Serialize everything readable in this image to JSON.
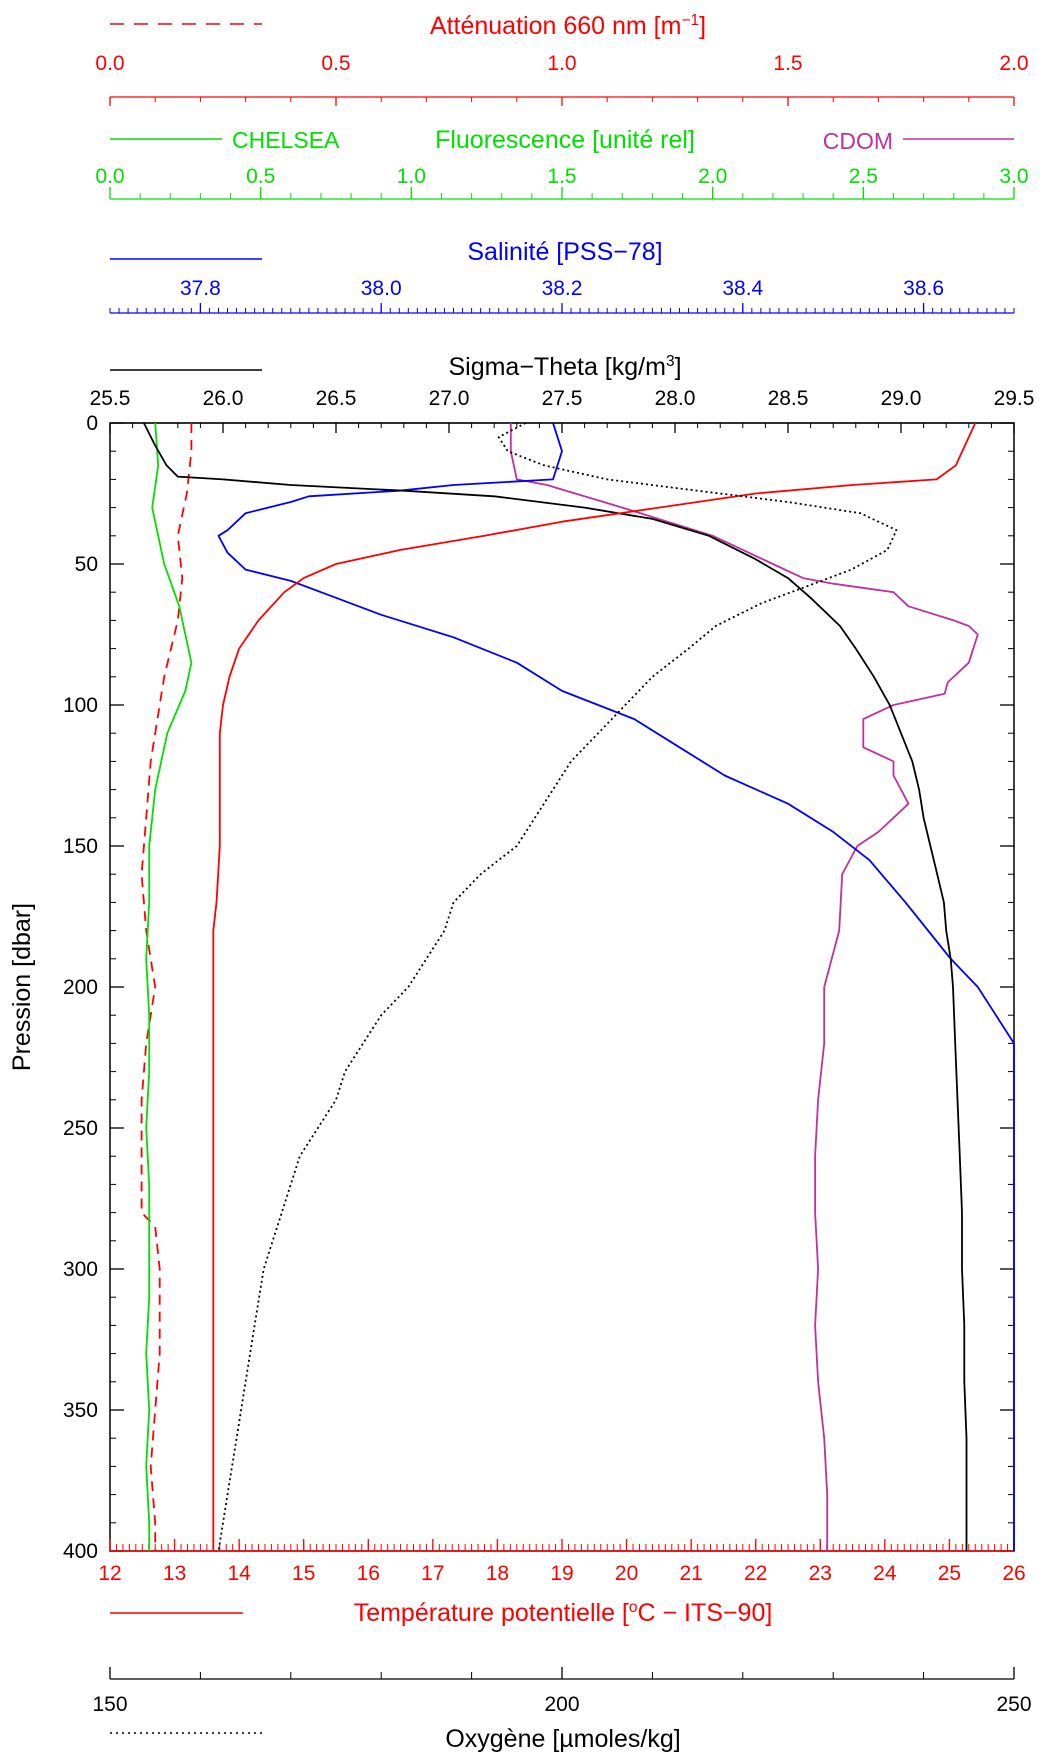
{
  "chart_data": {
    "type": "line",
    "y_axis": {
      "label": "Pression [dbar]",
      "range": [
        0,
        400
      ],
      "inverted": true,
      "ticks": [
        "0",
        "50",
        "100",
        "150",
        "200",
        "250",
        "300",
        "350",
        "400"
      ]
    },
    "axes": {
      "attenuation": {
        "label": "Atténuation 660 nm [m",
        "label_sup": "−1",
        "label_end": "]",
        "range": [
          0.0,
          2.0
        ],
        "ticks": [
          "0.0",
          "0.5",
          "1.0",
          "1.5",
          "2.0"
        ],
        "color": "#ff0000",
        "line_style": "dashed"
      },
      "fluorescence": {
        "label": "Fluorescence [unité rel]",
        "range": [
          0.0,
          3.0
        ],
        "ticks": [
          "0.0",
          "0.5",
          "1.0",
          "1.5",
          "2.0",
          "2.5",
          "3.0"
        ],
        "color": "#00e000",
        "legend_left": "CHELSEA",
        "legend_right": "CDOM",
        "cdom_color": "#c0309f"
      },
      "salinity": {
        "label": "Salinité [PSS−78]",
        "range": [
          37.7,
          38.7
        ],
        "ticks": [
          "37.8",
          "38.0",
          "38.2",
          "38.4",
          "38.6"
        ],
        "color": "#0000ff"
      },
      "sigma_theta": {
        "label": "Sigma−Theta [kg/m",
        "label_sup": "3",
        "label_end": "]",
        "range": [
          25.5,
          29.5
        ],
        "ticks": [
          "25.5",
          "26.0",
          "26.5",
          "27.0",
          "27.5",
          "28.0",
          "28.5",
          "29.0",
          "29.5"
        ],
        "color": "#000000"
      },
      "temperature": {
        "label": "Température potentielle [",
        "label_sup": "o",
        "label_end": "C − ITS−90]",
        "range": [
          12,
          26
        ],
        "ticks": [
          "12",
          "13",
          "14",
          "15",
          "16",
          "17",
          "18",
          "19",
          "20",
          "21",
          "22",
          "23",
          "24",
          "25",
          "26"
        ],
        "color": "#ff0000"
      },
      "oxygen": {
        "label": "Oxygène [µmoles/kg]",
        "range": [
          150,
          250
        ],
        "ticks": [
          "150",
          "200",
          "250"
        ],
        "color": "#000000",
        "line_style": "dotted"
      }
    },
    "series": [
      {
        "name": "Atténuation 660 nm",
        "axis": "attenuation",
        "points": [
          [
            0.18,
            0
          ],
          [
            0.18,
            10
          ],
          [
            0.17,
            25
          ],
          [
            0.15,
            40
          ],
          [
            0.16,
            55
          ],
          [
            0.15,
            70
          ],
          [
            0.12,
            90
          ],
          [
            0.11,
            100
          ],
          [
            0.09,
            120
          ],
          [
            0.08,
            140
          ],
          [
            0.07,
            160
          ],
          [
            0.08,
            180
          ],
          [
            0.1,
            200
          ],
          [
            0.08,
            220
          ],
          [
            0.07,
            240
          ],
          [
            0.07,
            260
          ],
          [
            0.07,
            280
          ],
          [
            0.1,
            285
          ],
          [
            0.11,
            300
          ],
          [
            0.11,
            330
          ],
          [
            0.1,
            350
          ],
          [
            0.09,
            370
          ],
          [
            0.1,
            390
          ],
          [
            0.1,
            400
          ]
        ]
      },
      {
        "name": "CHELSEA",
        "axis": "fluorescence",
        "points": [
          [
            0.15,
            0
          ],
          [
            0.16,
            15
          ],
          [
            0.14,
            30
          ],
          [
            0.18,
            50
          ],
          [
            0.23,
            65
          ],
          [
            0.25,
            75
          ],
          [
            0.27,
            85
          ],
          [
            0.25,
            95
          ],
          [
            0.19,
            110
          ],
          [
            0.15,
            130
          ],
          [
            0.13,
            150
          ],
          [
            0.13,
            170
          ],
          [
            0.12,
            190
          ],
          [
            0.13,
            210
          ],
          [
            0.13,
            230
          ],
          [
            0.12,
            250
          ],
          [
            0.13,
            270
          ],
          [
            0.13,
            290
          ],
          [
            0.13,
            310
          ],
          [
            0.12,
            330
          ],
          [
            0.13,
            350
          ],
          [
            0.12,
            370
          ],
          [
            0.13,
            390
          ],
          [
            0.13,
            400
          ]
        ]
      },
      {
        "name": "CDOM",
        "axis": "fluorescence",
        "points": [
          [
            1.33,
            0
          ],
          [
            1.33,
            10
          ],
          [
            1.35,
            20
          ],
          [
            1.45,
            22
          ],
          [
            1.7,
            30
          ],
          [
            2.0,
            40
          ],
          [
            2.2,
            50
          ],
          [
            2.3,
            55
          ],
          [
            2.4,
            57
          ],
          [
            2.6,
            60
          ],
          [
            2.65,
            65
          ],
          [
            2.8,
            70
          ],
          [
            2.85,
            72
          ],
          [
            2.88,
            75
          ],
          [
            2.85,
            85
          ],
          [
            2.78,
            92
          ],
          [
            2.77,
            96
          ],
          [
            2.6,
            100
          ],
          [
            2.5,
            105
          ],
          [
            2.5,
            115
          ],
          [
            2.6,
            120
          ],
          [
            2.6,
            125
          ],
          [
            2.65,
            135
          ],
          [
            2.6,
            140
          ],
          [
            2.55,
            145
          ],
          [
            2.48,
            150
          ],
          [
            2.43,
            160
          ],
          [
            2.42,
            180
          ],
          [
            2.37,
            200
          ],
          [
            2.37,
            220
          ],
          [
            2.35,
            240
          ],
          [
            2.34,
            260
          ],
          [
            2.34,
            280
          ],
          [
            2.35,
            300
          ],
          [
            2.34,
            320
          ],
          [
            2.35,
            340
          ],
          [
            2.37,
            360
          ],
          [
            2.38,
            380
          ],
          [
            2.38,
            400
          ]
        ]
      },
      {
        "name": "Salinité",
        "axis": "salinity",
        "points": [
          [
            38.19,
            0
          ],
          [
            38.2,
            10
          ],
          [
            38.19,
            20
          ],
          [
            38.08,
            22
          ],
          [
            38.02,
            24
          ],
          [
            37.92,
            26
          ],
          [
            37.9,
            28
          ],
          [
            37.85,
            32
          ],
          [
            37.83,
            38
          ],
          [
            37.82,
            40
          ],
          [
            37.83,
            46
          ],
          [
            37.85,
            52
          ],
          [
            37.9,
            56
          ],
          [
            37.95,
            62
          ],
          [
            38.0,
            68
          ],
          [
            38.08,
            76
          ],
          [
            38.15,
            85
          ],
          [
            38.2,
            95
          ],
          [
            38.28,
            105
          ],
          [
            38.33,
            115
          ],
          [
            38.38,
            125
          ],
          [
            38.45,
            135
          ],
          [
            38.5,
            145
          ],
          [
            38.54,
            155
          ],
          [
            38.58,
            170
          ],
          [
            38.6,
            178
          ],
          [
            38.63,
            190
          ],
          [
            38.66,
            200
          ],
          [
            38.68,
            210
          ],
          [
            38.7,
            220
          ],
          [
            38.73,
            230
          ],
          [
            38.77,
            240
          ],
          [
            38.81,
            250
          ],
          [
            38.84,
            260
          ],
          [
            38.87,
            270
          ],
          [
            38.9,
            280
          ],
          [
            38.92,
            290
          ],
          [
            38.93,
            300
          ],
          [
            38.94,
            310
          ],
          [
            38.95,
            320
          ],
          [
            38.96,
            330
          ],
          [
            38.97,
            340
          ],
          [
            38.98,
            350
          ],
          [
            38.98,
            360
          ],
          [
            38.99,
            370
          ],
          [
            38.99,
            380
          ],
          [
            38.99,
            390
          ],
          [
            39.0,
            400
          ]
        ]
      },
      {
        "name": "Sigma−Theta",
        "axis": "sigma_theta",
        "points": [
          [
            25.65,
            0
          ],
          [
            25.7,
            8
          ],
          [
            25.75,
            15
          ],
          [
            25.8,
            19
          ],
          [
            26.0,
            20
          ],
          [
            26.3,
            22
          ],
          [
            26.8,
            24
          ],
          [
            27.2,
            26
          ],
          [
            27.6,
            30
          ],
          [
            27.9,
            34
          ],
          [
            28.15,
            40
          ],
          [
            28.35,
            48
          ],
          [
            28.5,
            55
          ],
          [
            28.6,
            62
          ],
          [
            28.73,
            72
          ],
          [
            28.8,
            80
          ],
          [
            28.88,
            90
          ],
          [
            28.95,
            100
          ],
          [
            29.0,
            110
          ],
          [
            29.05,
            120
          ],
          [
            29.08,
            130
          ],
          [
            29.1,
            140
          ],
          [
            29.13,
            150
          ],
          [
            29.16,
            160
          ],
          [
            29.19,
            170
          ],
          [
            29.2,
            180
          ],
          [
            29.22,
            190
          ],
          [
            29.23,
            200
          ],
          [
            29.24,
            220
          ],
          [
            29.25,
            240
          ],
          [
            29.26,
            260
          ],
          [
            29.27,
            280
          ],
          [
            29.27,
            300
          ],
          [
            29.28,
            320
          ],
          [
            29.28,
            340
          ],
          [
            29.29,
            360
          ],
          [
            29.29,
            380
          ],
          [
            29.29,
            400
          ]
        ]
      },
      {
        "name": "Température potentielle",
        "axis": "temperature",
        "points": [
          [
            25.4,
            0
          ],
          [
            25.3,
            5
          ],
          [
            25.2,
            10
          ],
          [
            25.1,
            15
          ],
          [
            24.8,
            20
          ],
          [
            23.5,
            22
          ],
          [
            22.0,
            25
          ],
          [
            20.5,
            30
          ],
          [
            19.0,
            35
          ],
          [
            17.8,
            40
          ],
          [
            16.5,
            45
          ],
          [
            15.5,
            50
          ],
          [
            15.0,
            55
          ],
          [
            14.7,
            60
          ],
          [
            14.3,
            70
          ],
          [
            14.0,
            80
          ],
          [
            13.85,
            90
          ],
          [
            13.75,
            100
          ],
          [
            13.7,
            110
          ],
          [
            13.7,
            130
          ],
          [
            13.7,
            150
          ],
          [
            13.65,
            170
          ],
          [
            13.6,
            180
          ],
          [
            13.6,
            200
          ],
          [
            13.6,
            250
          ],
          [
            13.6,
            300
          ],
          [
            13.6,
            350
          ],
          [
            13.6,
            400
          ]
        ]
      },
      {
        "name": "Oxygène",
        "axis": "oxygen",
        "points": [
          [
            196,
            0
          ],
          [
            193,
            5
          ],
          [
            194,
            10
          ],
          [
            198,
            15
          ],
          [
            205,
            20
          ],
          [
            215,
            24
          ],
          [
            225,
            28
          ],
          [
            233,
            32
          ],
          [
            237,
            38
          ],
          [
            236,
            45
          ],
          [
            232,
            52
          ],
          [
            227,
            58
          ],
          [
            222,
            64
          ],
          [
            217,
            72
          ],
          [
            214,
            80
          ],
          [
            210,
            90
          ],
          [
            207,
            100
          ],
          [
            204,
            110
          ],
          [
            201,
            120
          ],
          [
            199,
            130
          ],
          [
            197,
            140
          ],
          [
            195,
            150
          ],
          [
            191,
            160
          ],
          [
            188,
            170
          ],
          [
            187,
            180
          ],
          [
            185,
            190
          ],
          [
            183,
            200
          ],
          [
            180,
            210
          ],
          [
            178,
            220
          ],
          [
            176,
            230
          ],
          [
            175,
            240
          ],
          [
            173,
            250
          ],
          [
            171,
            260
          ],
          [
            170,
            270
          ],
          [
            169,
            280
          ],
          [
            168,
            290
          ],
          [
            167,
            300
          ],
          [
            166,
            320
          ],
          [
            165,
            340
          ],
          [
            164,
            360
          ],
          [
            163,
            380
          ],
          [
            162,
            400
          ]
        ]
      }
    ]
  }
}
